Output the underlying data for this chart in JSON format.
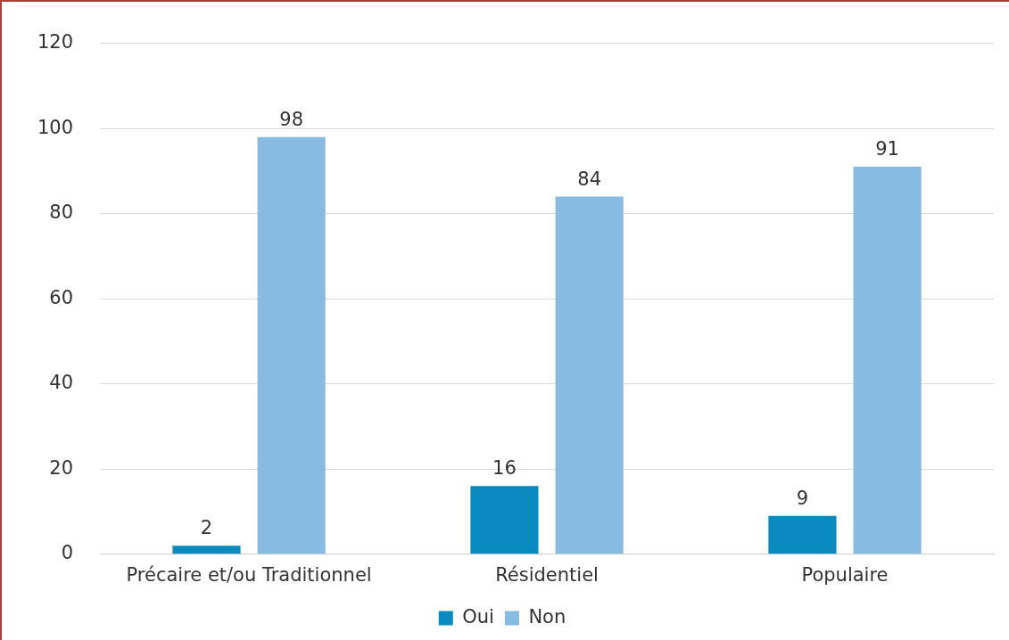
{
  "chart_data": {
    "type": "bar",
    "categories": [
      "Précaire et/ou Traditionnel",
      "Résidentiel",
      "Populaire"
    ],
    "series": [
      {
        "name": "Oui",
        "color": "#0a8bbf",
        "values": [
          2,
          16,
          9
        ]
      },
      {
        "name": "Non",
        "color": "#88bbe2",
        "values": [
          98,
          84,
          91
        ]
      }
    ],
    "ylim": [
      0,
      120
    ],
    "yticks": [
      0,
      20,
      40,
      60,
      80,
      100,
      120
    ],
    "grid": "y",
    "legend": "bottom",
    "data_labels": true
  }
}
